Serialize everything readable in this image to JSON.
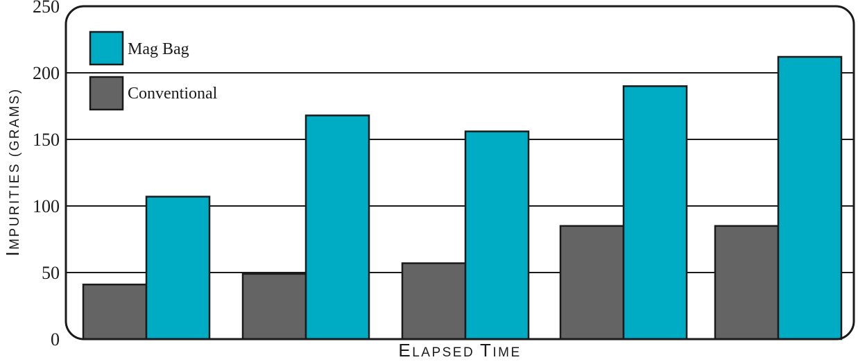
{
  "chart_data": {
    "type": "bar",
    "xlabel": "Elapsed Time",
    "ylabel": "Impurities (grams)",
    "ylim": [
      0,
      250
    ],
    "yticks": [
      0,
      50,
      100,
      150,
      200,
      250
    ],
    "grid": true,
    "legend_position": "top-left",
    "series": [
      {
        "name": "Conventional",
        "color": "#646464",
        "values": [
          41,
          49,
          57,
          85,
          85
        ]
      },
      {
        "name": "Mag Bag",
        "color": "#00acc4",
        "values": [
          107,
          168,
          156,
          190,
          212
        ]
      }
    ]
  }
}
